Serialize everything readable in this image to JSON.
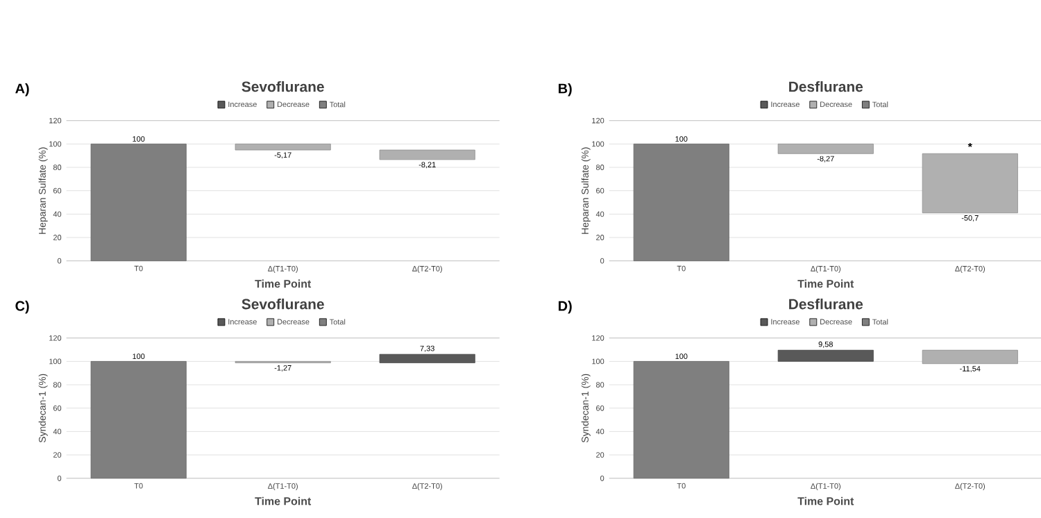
{
  "chart_data": [
    {
      "type": "bar",
      "title": "Sevoflurane",
      "xlabel": "Time Point",
      "ylabel": "Heparan Sulfate (%)",
      "categories": [
        "T0",
        "Δ(T1-T0)",
        "Δ(T2-T0)"
      ],
      "ylim": [
        0,
        120
      ],
      "yticks": [
        0,
        20,
        40,
        60,
        80,
        100,
        120
      ],
      "grid": "y",
      "legend": "top",
      "annotations": [
        "A)"
      ],
      "series": [
        {
          "name": "Increase",
          "color": "#595959",
          "values": [
            null,
            null,
            null
          ],
          "base": [
            null,
            null,
            null
          ],
          "value_labels": [
            null,
            null,
            null
          ]
        },
        {
          "name": "Decrease",
          "color": "#b0b0b0",
          "values": [
            null,
            -5.17,
            -8.21
          ],
          "base": [
            null,
            100,
            94.83
          ],
          "value_labels": [
            null,
            "-5,17",
            "-8,21"
          ]
        },
        {
          "name": "Total",
          "color": "#7f7f7f",
          "values": [
            100,
            null,
            null
          ],
          "base": [
            0,
            null,
            null
          ],
          "value_labels": [
            "100",
            null,
            null
          ]
        }
      ]
    },
    {
      "type": "bar",
      "title": "Desflurane",
      "xlabel": "Time Point",
      "ylabel": "Heparan Sulfate (%)",
      "categories": [
        "T0",
        "Δ(T1-T0)",
        "Δ(T2-T0)"
      ],
      "ylim": [
        0,
        120
      ],
      "yticks": [
        0,
        20,
        40,
        60,
        80,
        100,
        120
      ],
      "grid": "y",
      "legend": "top",
      "annotations": [
        "B)",
        {
          "text": "*",
          "x": "Δ(T2-T0)",
          "y": 91.73
        }
      ],
      "series": [
        {
          "name": "Increase",
          "color": "#595959",
          "values": [
            null,
            null,
            null
          ],
          "base": [
            null,
            null,
            null
          ],
          "value_labels": [
            null,
            null,
            null
          ]
        },
        {
          "name": "Decrease",
          "color": "#b0b0b0",
          "values": [
            null,
            -8.27,
            -50.7
          ],
          "base": [
            null,
            100,
            91.73
          ],
          "value_labels": [
            null,
            "-8,27",
            "-50,7"
          ]
        },
        {
          "name": "Total",
          "color": "#7f7f7f",
          "values": [
            100,
            null,
            null
          ],
          "base": [
            0,
            null,
            null
          ],
          "value_labels": [
            "100",
            null,
            null
          ]
        }
      ]
    },
    {
      "type": "bar",
      "title": "Sevoflurane",
      "xlabel": "Time Point",
      "ylabel": "Syndecan-1 (%)",
      "categories": [
        "T0",
        "Δ(T1-T0)",
        "Δ(T2-T0)"
      ],
      "ylim": [
        0,
        120
      ],
      "yticks": [
        0,
        20,
        40,
        60,
        80,
        100,
        120
      ],
      "grid": "y",
      "legend": "top",
      "annotations": [
        "C)"
      ],
      "series": [
        {
          "name": "Increase",
          "color": "#595959",
          "values": [
            null,
            null,
            7.33
          ],
          "base": [
            null,
            null,
            98.73
          ],
          "value_labels": [
            null,
            null,
            "7,33"
          ]
        },
        {
          "name": "Decrease",
          "color": "#b0b0b0",
          "values": [
            null,
            -1.27,
            null
          ],
          "base": [
            null,
            100,
            null
          ],
          "value_labels": [
            null,
            "-1,27",
            null
          ]
        },
        {
          "name": "Total",
          "color": "#7f7f7f",
          "values": [
            100,
            null,
            null
          ],
          "base": [
            0,
            null,
            null
          ],
          "value_labels": [
            "100",
            null,
            null
          ]
        }
      ]
    },
    {
      "type": "bar",
      "title": "Desflurane",
      "xlabel": "Time Point",
      "ylabel": "Syndecan-1 (%)",
      "categories": [
        "T0",
        "Δ(T1-T0)",
        "Δ(T2-T0)"
      ],
      "ylim": [
        0,
        120
      ],
      "yticks": [
        0,
        20,
        40,
        60,
        80,
        100,
        120
      ],
      "grid": "y",
      "legend": "top",
      "annotations": [
        "D)"
      ],
      "series": [
        {
          "name": "Increase",
          "color": "#595959",
          "values": [
            null,
            9.58,
            null
          ],
          "base": [
            null,
            100,
            null
          ],
          "value_labels": [
            null,
            "9,58",
            null
          ]
        },
        {
          "name": "Decrease",
          "color": "#b0b0b0",
          "values": [
            null,
            null,
            -11.54
          ],
          "base": [
            null,
            null,
            109.58
          ],
          "value_labels": [
            null,
            null,
            "-11,54"
          ]
        },
        {
          "name": "Total",
          "color": "#7f7f7f",
          "values": [
            100,
            null,
            null
          ],
          "base": [
            0,
            null,
            null
          ],
          "value_labels": [
            "100",
            null,
            null
          ]
        }
      ]
    }
  ]
}
